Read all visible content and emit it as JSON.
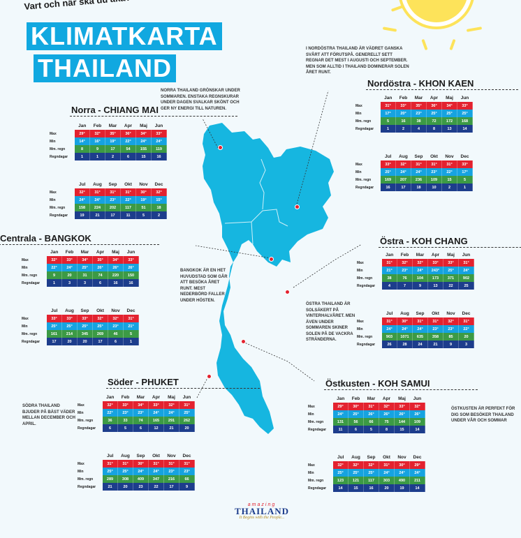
{
  "subtitle": "Vart och när ska du åka?",
  "title_line1": "KLIMATKARTA",
  "title_line2": "THAILAND",
  "row_labels": [
    "Max",
    "Min",
    "Mm. regn",
    "Regndagar"
  ],
  "months_h1": [
    "Jan",
    "Feb",
    "Mar",
    "Apr",
    "Maj",
    "Jun"
  ],
  "months_h2": [
    "Jul",
    "Aug",
    "Sep",
    "Okt",
    "Nov",
    "Dec"
  ],
  "notes": {
    "northeast": "I NORDÖSTRA THAILAND ÄR VÄDRET GANSKA SVÅRT ATT FÖRUTSPÅ. GENERELLT SETT REGNAR DET MEST I AUGUSTI OCH SEPTEMBER. MEN SOM ALLTID I THAILAND DOMINERAR SOLEN ÅRET RUNT.",
    "north": "NORRA THAILAND GRÖNSKAR UNDER SOMMAREN. ENSTAKA REGNSKURAR UNDER DAGEN SVALKAR SKÖNT OCH GER NY ENERGI TILL NATUREN.",
    "bangkok": "BANGKOK ÄR EN HET HUVUDSTAD SOM GÅR ATT BESÖKA ÅRET RUNT. MEST NEDERBÖRD FALLER UNDER HÖSTEN.",
    "east": "ÖSTRA THAILAND ÄR SOLSÄKERT PÅ VINTERHALVÅRET. MEN ÄVEN UNDER SOMMAREN SKINER SOLEN PÅ DE VACKRA STRÄNDERNA.",
    "south": "SÖDRA THAILAND BJUDER PÅ BÄST VÄDER MELLAN DECEMBER OCH APRIL.",
    "eastcoast": "ÖSTKUSTEN ÄR PERFEKT FÖR DIG SOM BESÖKER THAILAND UNDER VÅR OCH SOMMAR"
  },
  "regions": {
    "norra": {
      "title": "Norra - CHIANG MAI",
      "h1": [
        [
          "29°",
          "32°",
          "35°",
          "36°",
          "34°",
          "33°"
        ],
        [
          "14°",
          "16°",
          "19°",
          "22°",
          "24°",
          "24°"
        ],
        [
          "8",
          "9",
          "17",
          "54",
          "155",
          "119"
        ],
        [
          "1",
          "1",
          "2",
          "6",
          "15",
          "16"
        ]
      ],
      "h2": [
        [
          "32°",
          "31°",
          "31°",
          "31°",
          "30°",
          "32°"
        ],
        [
          "24°",
          "24°",
          "23°",
          "22°",
          "19°",
          "15°"
        ],
        [
          "158",
          "224",
          "202",
          "117",
          "51",
          "18"
        ],
        [
          "19",
          "21",
          "17",
          "11",
          "5",
          "2"
        ]
      ]
    },
    "nordostra": {
      "title": "Nordöstra - KHON KAEN",
      "h1": [
        [
          "31°",
          "33°",
          "35°",
          "36°",
          "34°",
          "33°"
        ],
        [
          "17°",
          "20°",
          "23°",
          "25°",
          "25°",
          "25°"
        ],
        [
          "5",
          "16",
          "38",
          "72",
          "172",
          "168"
        ],
        [
          "1",
          "2",
          "4",
          "8",
          "13",
          "14"
        ]
      ],
      "h2": [
        [
          "33°",
          "32°",
          "31°",
          "31°",
          "31°",
          "33°"
        ],
        [
          "25°",
          "24°",
          "24°",
          "23°",
          "22°",
          "17°"
        ],
        [
          "169",
          "207",
          "236",
          "109",
          "15",
          "5"
        ],
        [
          "16",
          "17",
          "18",
          "10",
          "2",
          "1"
        ]
      ]
    },
    "centrala": {
      "title": "Centrala - BANGKOK",
      "h1": [
        [
          "32°",
          "33°",
          "34°",
          "35°",
          "34°",
          "33°"
        ],
        [
          "22°",
          "24°",
          "25°",
          "26°",
          "26°",
          "26°"
        ],
        [
          "9",
          "20",
          "31",
          "74",
          "220",
          "150"
        ],
        [
          "1",
          "3",
          "3",
          "6",
          "16",
          "16"
        ]
      ],
      "h2": [
        [
          "33°",
          "33°",
          "33°",
          "32°",
          "32°",
          "31°"
        ],
        [
          "25°",
          "25°",
          "25°",
          "25°",
          "23°",
          "21°"
        ],
        [
          "161",
          "214",
          "345",
          "269",
          "46",
          "5"
        ],
        [
          "17",
          "20",
          "20",
          "17",
          "6",
          "1"
        ]
      ]
    },
    "ostra": {
      "title": "Östra - KOH CHANG",
      "h1": [
        [
          "31°",
          "32°",
          "32°",
          "33°",
          "33°",
          "31°"
        ],
        [
          "21°",
          "23°",
          "24°",
          "243°",
          "25°",
          "24°"
        ],
        [
          "38",
          "76",
          "104",
          "173",
          "371",
          "902"
        ],
        [
          "4",
          "7",
          "9",
          "13",
          "22",
          "25"
        ]
      ],
      "h2": [
        [
          "31°",
          "30°",
          "31°",
          "31°",
          "32°",
          "31°"
        ],
        [
          "24°",
          "24°",
          "24°",
          "23°",
          "23°",
          "22°"
        ],
        [
          "903",
          "1071",
          "635",
          "358",
          "85",
          "20"
        ],
        [
          "26",
          "28",
          "24",
          "21",
          "9",
          "3"
        ]
      ]
    },
    "soder": {
      "title": "Söder - PHUKET",
      "h1": [
        [
          "32°",
          "33°",
          "34°",
          "33°",
          "32°",
          "31°"
        ],
        [
          "22°",
          "23°",
          "23°",
          "24°",
          "24°",
          "25°"
        ],
        [
          "36",
          "33",
          "74",
          "165",
          "291",
          "262"
        ],
        [
          "6",
          "5",
          "6",
          "12",
          "21",
          "20"
        ]
      ],
      "h2": [
        [
          "31°",
          "31°",
          "30°",
          "31°",
          "31°",
          "31°"
        ],
        [
          "25°",
          "25°",
          "24°",
          "24°",
          "23°",
          "23°"
        ],
        [
          "289",
          "308",
          "409",
          "347",
          "216",
          "66"
        ],
        [
          "21",
          "20",
          "23",
          "22",
          "17",
          "9"
        ]
      ]
    },
    "ostkusten": {
      "title": "Östkusten - KOH SAMUI",
      "h1": [
        [
          "29°",
          "30°",
          "31°",
          "32°",
          "33°",
          "32°"
        ],
        [
          "24°",
          "25°",
          "26°",
          "26°",
          "26°",
          "26°"
        ],
        [
          "131",
          "56",
          "66",
          "75",
          "144",
          "109"
        ],
        [
          "11",
          "6",
          "5",
          "8",
          "15",
          "14"
        ]
      ],
      "h2": [
        [
          "32°",
          "32°",
          "32°",
          "31°",
          "30°",
          "29°"
        ],
        [
          "25°",
          "25°",
          "25°",
          "24°",
          "24°",
          "24°"
        ],
        [
          "123",
          "121",
          "117",
          "303",
          "490",
          "211"
        ],
        [
          "14",
          "15",
          "16",
          "20",
          "19",
          "14"
        ]
      ]
    }
  },
  "logo": {
    "top": "amazing",
    "main": "THAILAND",
    "tagline": "It Begins with the People..."
  },
  "colors": {
    "max": "#e3222f",
    "min": "#16a3e0",
    "rain": "#3c9a45",
    "days": "#1d3d8c",
    "brand": "#11a8e0"
  }
}
